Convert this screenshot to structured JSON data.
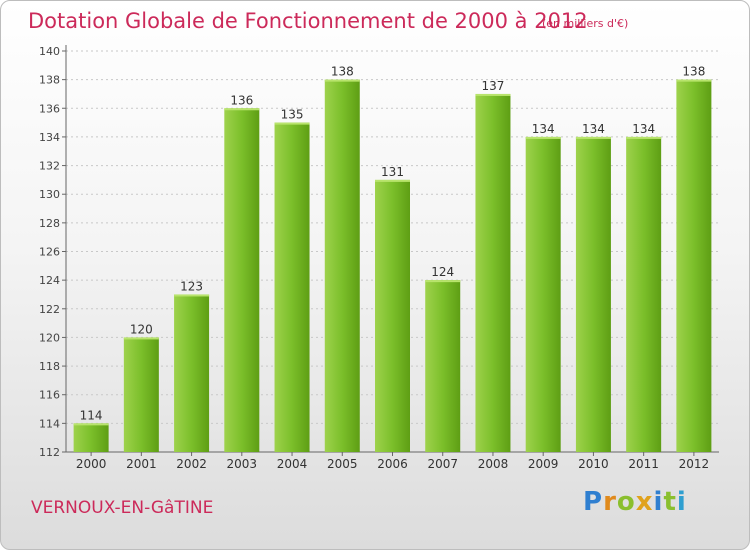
{
  "title": "Dotation Globale de Fonctionnement de 2000 à 2012",
  "subtitle": "(en milliers d'€)",
  "commune": "VERNOUX-EN-GâTINE",
  "logo": {
    "letters": [
      {
        "char": "P",
        "color": "#2f7fd0"
      },
      {
        "char": "r",
        "color": "#e08a1c"
      },
      {
        "char": "o",
        "color": "#8abf2e"
      },
      {
        "char": "x",
        "color": "#e0a21c"
      },
      {
        "char": "i",
        "color": "#2f7fd0"
      },
      {
        "char": "t",
        "color": "#8abf2e"
      },
      {
        "char": "i",
        "color": "#2f9fd0"
      }
    ]
  },
  "colors": {
    "accent": "#cc2a5a",
    "bar_light": "#a8dc5a",
    "bar_dark": "#5e9e14",
    "grid": "#c8c8c8"
  },
  "chart_data": {
    "type": "bar",
    "title": "Dotation Globale de Fonctionnement de 2000 à 2012",
    "subtitle": "(en milliers d'€)",
    "xlabel": "",
    "ylabel": "",
    "categories": [
      "2000",
      "2001",
      "2002",
      "2003",
      "2004",
      "2005",
      "2006",
      "2007",
      "2008",
      "2009",
      "2010",
      "2011",
      "2012"
    ],
    "values": [
      114,
      120,
      123,
      136,
      135,
      138,
      131,
      124,
      137,
      134,
      134,
      134,
      138
    ],
    "ylim": [
      112,
      140
    ],
    "yticks": [
      112,
      114,
      116,
      118,
      120,
      122,
      124,
      126,
      128,
      130,
      132,
      134,
      136,
      138,
      140
    ],
    "grid": true,
    "legend": "none",
    "data_labels": true
  }
}
